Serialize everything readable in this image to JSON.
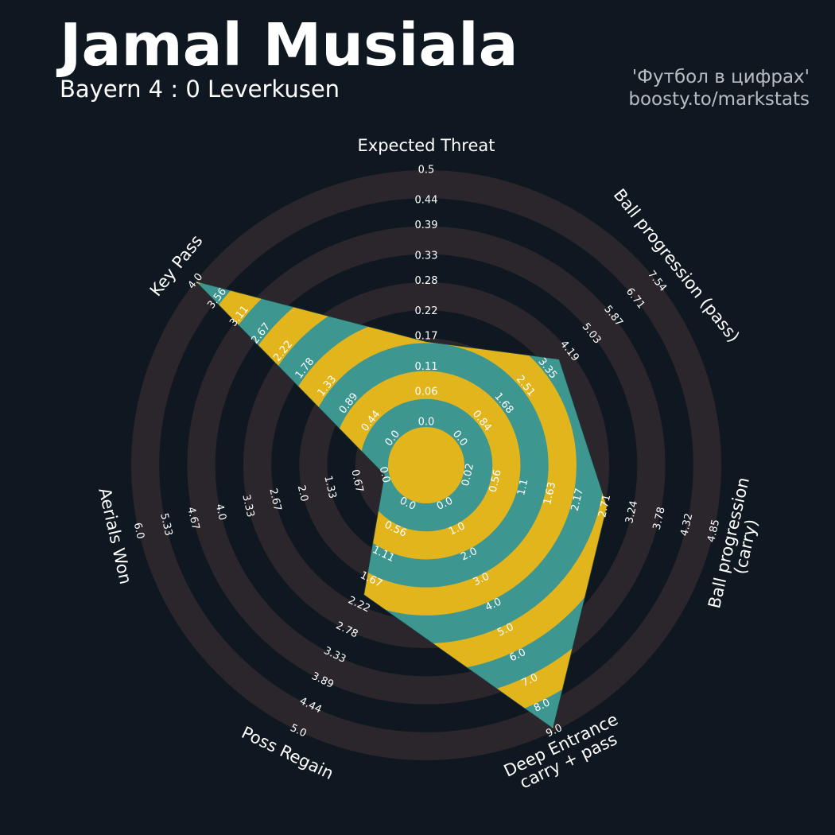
{
  "chart_data": {
    "type": "radar",
    "title": "Jamal Musiala",
    "subtitle": "Bayern 4 : 0 Leverkusen",
    "credits": [
      "'Футбол в цифрах'",
      "boosty.to/markstats"
    ],
    "categories": [
      "Expected Threat",
      "Ball progression (pass)",
      "Ball progression (carry)",
      "Deep Entrance\ncarry + pass",
      "Poss Regain",
      "Aerials Won",
      "Key Pass"
    ],
    "ticks": [
      [
        {
          "value": 0,
          "label": "0.0"
        },
        0.06,
        0.11,
        0.17,
        0.22,
        0.28,
        0.33,
        0.39,
        0.44,
        0.5
      ],
      [
        {
          "value": 0,
          "label": "0.0"
        },
        0.84,
        1.68,
        2.51,
        3.35,
        4.19,
        5.03,
        5.87,
        6.71,
        7.54
      ],
      [
        0.02,
        0.56,
        1.1,
        1.63,
        2.17,
        2.71,
        3.24,
        3.78,
        4.32,
        4.85
      ],
      [
        {
          "value": 0,
          "label": "0.0"
        },
        {
          "value": 1,
          "label": "1.0"
        },
        {
          "value": 2,
          "label": "2.0"
        },
        {
          "value": 3,
          "label": "3.0"
        },
        {
          "value": 4,
          "label": "4.0"
        },
        {
          "value": 5,
          "label": "5.0"
        },
        {
          "value": 6,
          "label": "6.0"
        },
        {
          "value": 7,
          "label": "7.0"
        },
        {
          "value": 8,
          "label": "8.0"
        },
        {
          "value": 9,
          "label": "9.0"
        }
      ],
      [
        {
          "value": 0,
          "label": "0.0"
        },
        0.56,
        1.11,
        1.67,
        2.22,
        2.78,
        3.33,
        3.89,
        4.44,
        {
          "value": 5,
          "label": "5.0"
        }
      ],
      [
        {
          "value": 0,
          "label": "0.0"
        },
        0.67,
        1.33,
        {
          "value": 2,
          "label": "2.0"
        },
        2.67,
        3.33,
        {
          "value": 4,
          "label": "4.0"
        },
        4.67,
        5.33,
        {
          "value": 6,
          "label": "6.0"
        }
      ],
      [
        {
          "value": 0,
          "label": "0.0"
        },
        0.44,
        0.89,
        1.33,
        1.78,
        2.22,
        2.67,
        3.11,
        3.56,
        {
          "value": 4,
          "label": "4.0"
        }
      ]
    ],
    "series": [
      {
        "values": [
          0.16,
          3.8,
          2.75,
          8.9,
          2.0,
          0.0,
          4.0
        ],
        "color": "#3d9690",
        "band_color": "#e3b51d"
      }
    ],
    "ring_color": "#2a262b"
  }
}
